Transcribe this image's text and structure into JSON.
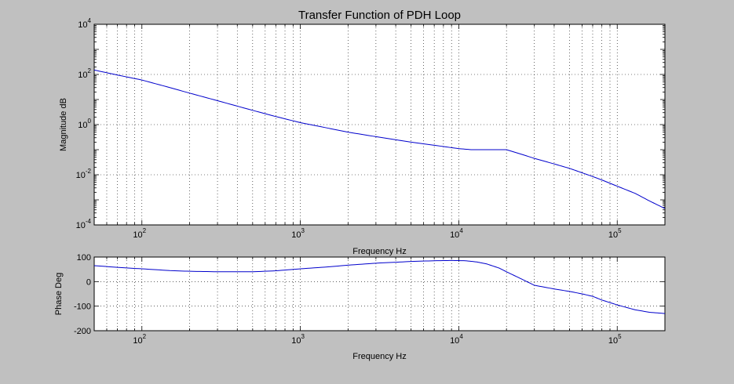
{
  "chart_data": [
    {
      "type": "line",
      "title": "Transfer Function of PDH Loop",
      "xlabel": "Frequency Hz",
      "ylabel": "Magnitude dB",
      "xscale": "log",
      "yscale": "log",
      "xlim": [
        50,
        200000
      ],
      "ylim": [
        0.0001,
        10000
      ],
      "grid": true,
      "line_color": "#0000cc",
      "x_tick_labels": [
        {
          "base": "10",
          "exp": "2",
          "value": 100
        },
        {
          "base": "10",
          "exp": "3",
          "value": 1000
        },
        {
          "base": "10",
          "exp": "4",
          "value": 10000
        },
        {
          "base": "10",
          "exp": "5",
          "value": 100000
        }
      ],
      "y_tick_labels": [
        {
          "base": "10",
          "exp": "4",
          "value": 10000
        },
        {
          "base": "10",
          "exp": "2",
          "value": 100
        },
        {
          "base": "10",
          "exp": "0",
          "value": 1
        },
        {
          "base": "10",
          "exp": "-2",
          "value": 0.01
        },
        {
          "base": "10",
          "exp": "-4",
          "value": 0.0001
        }
      ],
      "series": [
        {
          "x": [
            50,
            70,
            100,
            150,
            200,
            300,
            500,
            700,
            1000,
            1500,
            2000,
            3000,
            5000,
            7000,
            10000,
            12000,
            15000,
            20000,
            25000,
            30000,
            40000,
            50000,
            60000,
            70000,
            80000,
            100000,
            130000,
            160000,
            200000
          ],
          "y": [
            150,
            95,
            60,
            30,
            18,
            9,
            3.7,
            2.1,
            1.2,
            0.72,
            0.5,
            0.33,
            0.2,
            0.15,
            0.11,
            0.1,
            0.1,
            0.1,
            0.065,
            0.045,
            0.027,
            0.018,
            0.012,
            0.0085,
            0.0062,
            0.0035,
            0.0018,
            0.0009,
            0.00045
          ]
        }
      ]
    },
    {
      "type": "line",
      "xlabel": "Frequency Hz",
      "ylabel": "Phase Deg",
      "xscale": "log",
      "xlim": [
        50,
        200000
      ],
      "ylim": [
        -200,
        100
      ],
      "grid": true,
      "line_color": "#0000cc",
      "x_tick_labels": [
        {
          "base": "10",
          "exp": "2",
          "value": 100
        },
        {
          "base": "10",
          "exp": "3",
          "value": 1000
        },
        {
          "base": "10",
          "exp": "4",
          "value": 10000
        },
        {
          "base": "10",
          "exp": "5",
          "value": 100000
        }
      ],
      "y_tick_labels": [
        {
          "text": "100",
          "value": 100
        },
        {
          "text": "0",
          "value": 0
        },
        {
          "text": "-100",
          "value": -100
        },
        {
          "text": "-200",
          "value": -200
        }
      ],
      "series": [
        {
          "x": [
            50,
            70,
            100,
            150,
            200,
            300,
            500,
            700,
            1000,
            1500,
            2000,
            3000,
            5000,
            7000,
            9000,
            11000,
            13000,
            15000,
            18000,
            20000,
            25000,
            30000,
            40000,
            50000,
            60000,
            70000,
            80000,
            100000,
            130000,
            160000,
            200000
          ],
          "y": [
            65,
            58,
            52,
            45,
            42,
            40,
            40,
            44,
            52,
            60,
            67,
            75,
            82,
            85,
            86,
            85,
            80,
            72,
            55,
            40,
            10,
            -15,
            -30,
            -40,
            -50,
            -60,
            -75,
            -95,
            -115,
            -125,
            -130
          ]
        }
      ]
    }
  ]
}
